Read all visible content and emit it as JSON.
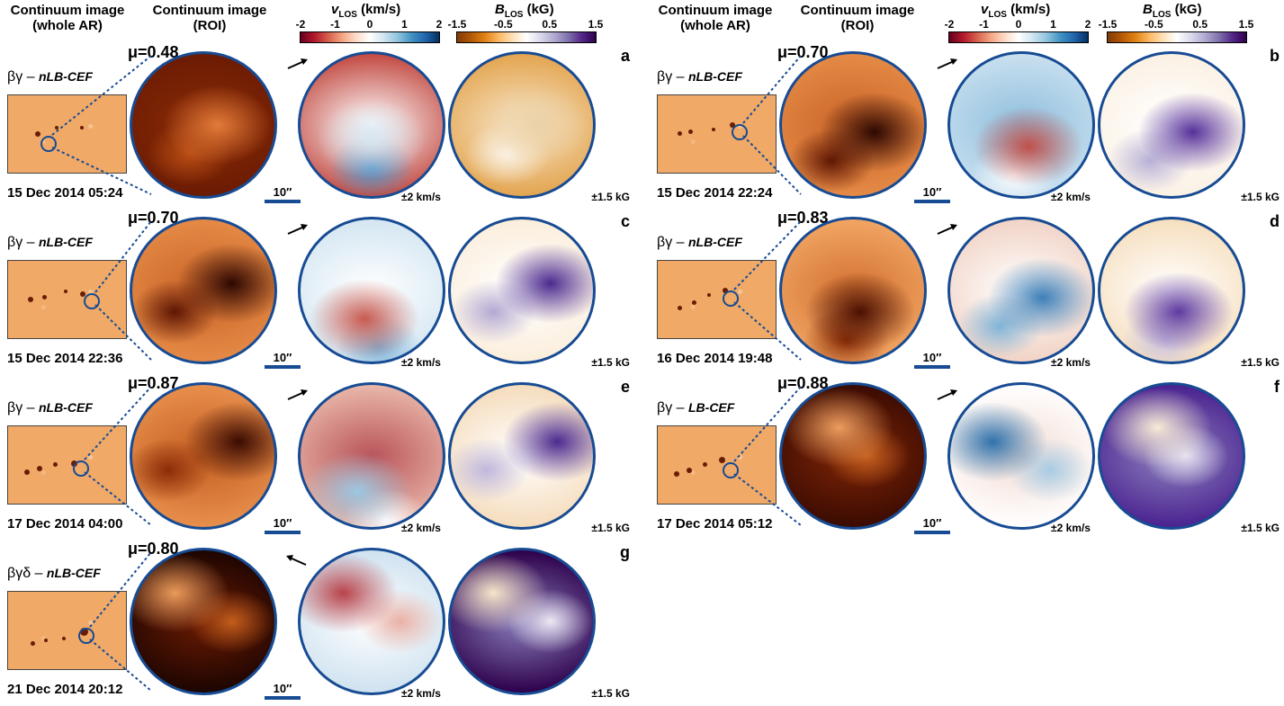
{
  "headers": {
    "cont_whole": "Continuum image",
    "cont_whole_sub": "(whole AR)",
    "cont_roi": "Continuum image",
    "cont_roi_sub": "(ROI)",
    "v_var": "v",
    "v_sub": "LOS",
    "v_unit": " (km/s)",
    "b_var": "B",
    "b_sub": "LOS",
    "b_unit": " (kG)"
  },
  "colorbars": {
    "v_ticks": [
      "-2",
      "-1",
      "0",
      "1",
      "2"
    ],
    "b_ticks": [
      "-1.5",
      "-0.5",
      "0.5",
      "1.5"
    ],
    "v_colormap": [
      "#67001f",
      "#f7f7f7",
      "#053061"
    ],
    "b_colormap": [
      "#7f3b08",
      "#f7f7f7",
      "#2d004b"
    ]
  },
  "panels": [
    {
      "letter": "a",
      "mu": "μ=0.48",
      "class": "βγ",
      "type": "nLB-CEF",
      "date": "15 Dec 2014 05:24",
      "scale": "10″",
      "v_label": "±2 km/s",
      "b_label": "±1.5 kG",
      "arrow": "right-up",
      "cont": [
        "#6b1b03",
        "#8a2b06",
        "#b84d15",
        "#e27a38"
      ],
      "vel": [
        "#c24a42",
        "#ffffff",
        "#4a8fc6",
        "#d8e7f1"
      ],
      "mag": [
        "#e3a550",
        "#f7e5c8",
        "#fbf3e6",
        "#ecd2a8"
      ]
    },
    {
      "letter": "b",
      "mu": "μ=0.70",
      "class": "βγ",
      "type": "nLB-CEF",
      "date": "15 Dec 2014 22:24",
      "scale": "10″",
      "v_label": "±2 km/s",
      "b_label": "±1.5 kG",
      "arrow": "right-up",
      "cont": [
        "#e58a46",
        "#c96428",
        "#5e1603",
        "#2e0802"
      ],
      "vel": [
        "#c9e0ef",
        "#8fbfde",
        "#ffffff",
        "#c0504a"
      ],
      "mag": [
        "#fbf1e4",
        "#ffffff",
        "#b8b0d6",
        "#56309a"
      ]
    },
    {
      "letter": "c",
      "mu": "μ=0.70",
      "class": "βγ",
      "type": "nLB-CEF",
      "date": "15 Dec 2014 22:36",
      "scale": "10″",
      "v_label": "±2 km/s",
      "b_label": "±1.5 kG",
      "arrow": "right-up",
      "cont": [
        "#e58a46",
        "#c96428",
        "#5e1603",
        "#2e0802"
      ],
      "vel": [
        "#d4e6f2",
        "#ffffff",
        "#7eb3d8",
        "#c85a50"
      ],
      "mag": [
        "#fbeedc",
        "#ffffff",
        "#b3a9d3",
        "#4c2a8f"
      ]
    },
    {
      "letter": "d",
      "mu": "μ=0.83",
      "class": "βγ",
      "type": "nLB-CEF",
      "date": "16 Dec 2014 19:48",
      "scale": "10″",
      "v_label": "±2 km/s",
      "b_label": "±1.5 kG",
      "arrow": "right-up",
      "cont": [
        "#f2a563",
        "#d27232",
        "#8d2f08",
        "#4a1002"
      ],
      "vel": [
        "#f1d3c6",
        "#ffffff",
        "#7fb3d7",
        "#3d7fb8"
      ],
      "mag": [
        "#f6dfbf",
        "#ffffff",
        "#c9c1e0",
        "#5e3aa0"
      ]
    },
    {
      "letter": "e",
      "mu": "μ=0.87",
      "class": "βγ",
      "type": "nLB-CEF",
      "date": "17 Dec 2014 04:00",
      "scale": "10″",
      "v_label": "±2 km/s",
      "b_label": "±1.5 kG",
      "arrow": "right-up",
      "cont": [
        "#e88f4c",
        "#c45f22",
        "#8b2c08",
        "#3a0b02"
      ],
      "vel": [
        "#e9b7a9",
        "#b9545a",
        "#ffffff",
        "#9cc7e2"
      ],
      "mag": [
        "#f5dcbc",
        "#ffffff",
        "#c0b8dc",
        "#4c2a8f"
      ]
    },
    {
      "letter": "f",
      "mu": "μ=0.88",
      "class": "βγ",
      "type": "LB-CEF",
      "date": "17 Dec 2014 05:12",
      "scale": "10″",
      "v_label": "±2 km/s",
      "b_label": "±1.5 kG",
      "arrow": "right-up",
      "cont": [
        "#3a0b02",
        "#7d2405",
        "#c4601f",
        "#eb9d5e"
      ],
      "vel": [
        "#ffffff",
        "#f3dcd3",
        "#a8cbe3",
        "#2f72ac"
      ],
      "mag": [
        "#4a2290",
        "#8d82bd",
        "#e6e1f0",
        "#f8ead6"
      ]
    },
    {
      "letter": "g",
      "mu": "μ=0.80",
      "class": "βγδ",
      "type": "nLB-CEF",
      "date": "21 Dec 2014 20:12",
      "scale": "10″",
      "v_label": "±2 km/s",
      "b_label": "±1.5 kG",
      "arrow": "left-up",
      "cont": [
        "#1c0501",
        "#6a1a03",
        "#c25d1c",
        "#ea9a5a"
      ],
      "vel": [
        "#cfe2f0",
        "#ffffff",
        "#e9b1a6",
        "#b8434a"
      ],
      "mag": [
        "#2d004b",
        "#8a7fbc",
        "#ece7f3",
        "#f7e4c8"
      ]
    }
  ]
}
